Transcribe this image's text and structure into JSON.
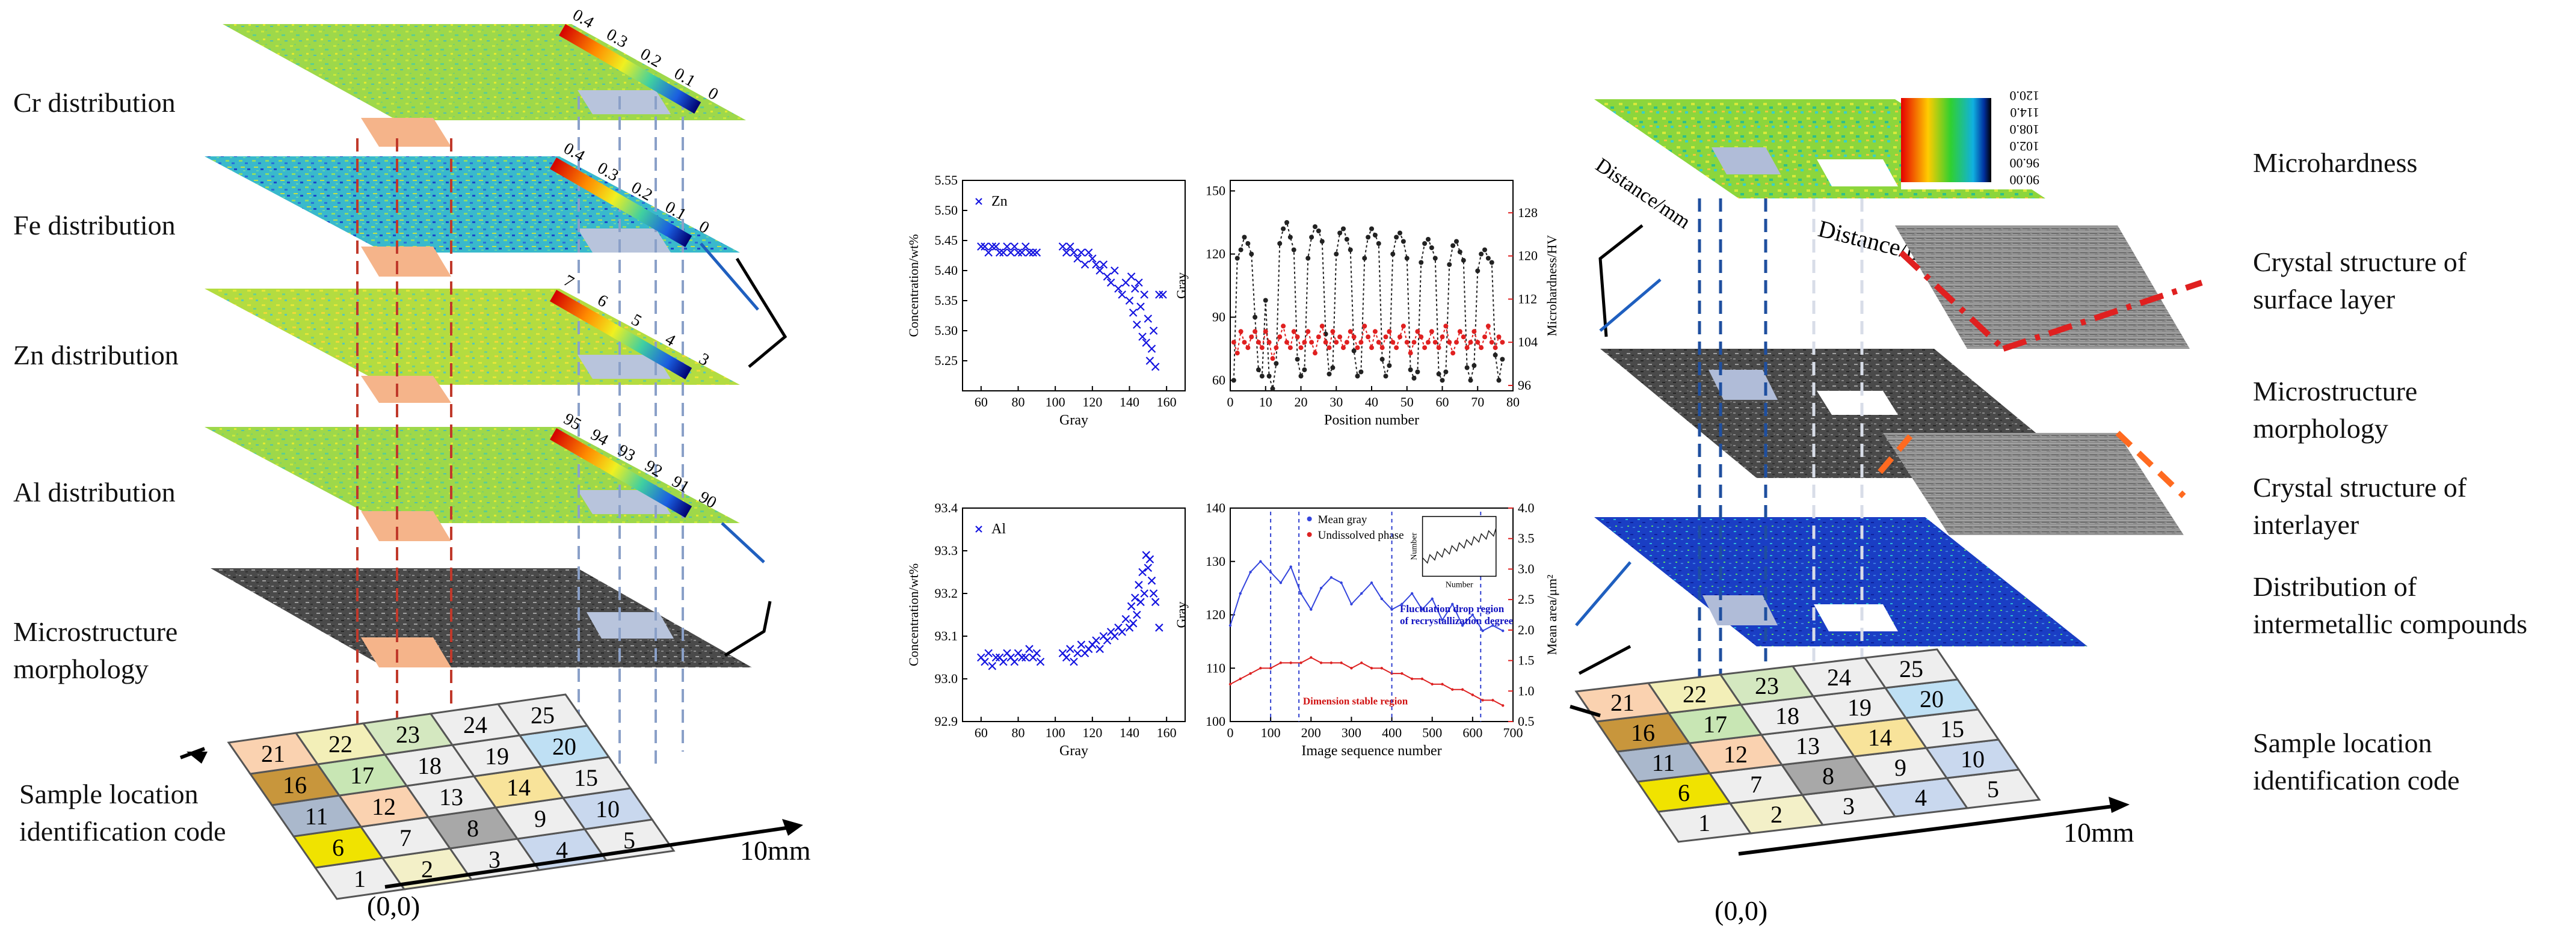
{
  "left_panel": {
    "labels": {
      "cr": "Cr distribution",
      "fe": "Fe distribution",
      "zn": "Zn distribution",
      "al": "Al distribution",
      "micro": "Microstructure\nmorphology",
      "sample": "Sample location\nidentification code"
    },
    "origin": "(0,0)",
    "scale": "10mm",
    "cr_ticks": [
      "0.4",
      "0.3",
      "0.2",
      "0.1",
      "0"
    ],
    "fe_ticks": [
      "0.4",
      "0.3",
      "0.2",
      "0.1",
      "0"
    ],
    "zn_ticks": [
      "7",
      "6",
      "5",
      "4",
      "3"
    ],
    "al_ticks": [
      "95",
      "94",
      "93",
      "92",
      "91",
      "90"
    ]
  },
  "grid": {
    "codes": [
      [
        1,
        2,
        3,
        4,
        5
      ],
      [
        6,
        7,
        8,
        9,
        10
      ],
      [
        11,
        12,
        13,
        14,
        15
      ],
      [
        16,
        17,
        18,
        19,
        20
      ],
      [
        21,
        22,
        23,
        24,
        25
      ]
    ],
    "colors": [
      [
        "#eeeeee",
        "#f3f0c8",
        "#eeeeee",
        "#c9d8ee",
        "#eeeeee"
      ],
      [
        "#f0e300",
        "#eeeeee",
        "#a8a8a8",
        "#eeeeee",
        "#c9d8ee"
      ],
      [
        "#aab8cc",
        "#fad2b0",
        "#eeeeee",
        "#f8e39a",
        "#eeeeee"
      ],
      [
        "#c8963c",
        "#c8e6b4",
        "#eeeeee",
        "#eeeeee",
        "#bfe0f4"
      ],
      [
        "#fad2b0",
        "#f3efb8",
        "#d4e8c0",
        "#eeeeee",
        "#eeeeee"
      ]
    ]
  },
  "right_panel": {
    "labels": {
      "hardness": "Microhardness",
      "crystal_surface": "Crystal structure of\nsurface layer",
      "micro": "Microstructure\nmorphology",
      "crystal_inter": "Crystal structure of\ninterlayer",
      "imc": "Distribution of\nintermetallic compounds",
      "sample": "Sample location\nidentification code"
    },
    "origin": "(0,0)",
    "scale": "10mm",
    "hardness_ticks": [
      "120.0",
      "114.0",
      "108.0",
      "102.0",
      "96.00",
      "90.00"
    ],
    "hardness_axis": "Distance/mm",
    "hardness_axis2": "Distance/mm"
  },
  "chart_data": [
    {
      "type": "scatter",
      "legend": "Zn",
      "xlabel": "Gray",
      "ylabel": "Concentration/wt%",
      "xlim": [
        50,
        170
      ],
      "ylim": [
        5.2,
        5.55
      ],
      "xticks": [
        "60",
        "80",
        "100",
        "120",
        "140",
        "160"
      ],
      "yticks": [
        "5.25",
        "5.30",
        "5.35",
        "5.40",
        "5.45",
        "5.50",
        "5.55"
      ],
      "x": [
        60,
        62,
        64,
        66,
        68,
        70,
        72,
        74,
        76,
        78,
        80,
        82,
        84,
        86,
        88,
        90,
        104,
        106,
        108,
        110,
        112,
        114,
        116,
        118,
        120,
        122,
        124,
        126,
        128,
        130,
        132,
        134,
        136,
        138,
        140,
        141,
        142,
        143,
        144,
        145,
        146,
        147,
        148,
        149,
        150,
        151,
        152,
        153,
        154,
        156,
        158
      ],
      "y": [
        5.44,
        5.44,
        5.43,
        5.44,
        5.44,
        5.43,
        5.43,
        5.44,
        5.43,
        5.44,
        5.43,
        5.43,
        5.44,
        5.43,
        5.43,
        5.43,
        5.44,
        5.43,
        5.44,
        5.43,
        5.42,
        5.43,
        5.41,
        5.43,
        5.42,
        5.41,
        5.4,
        5.41,
        5.39,
        5.38,
        5.4,
        5.37,
        5.36,
        5.38,
        5.35,
        5.39,
        5.33,
        5.37,
        5.31,
        5.38,
        5.34,
        5.29,
        5.36,
        5.28,
        5.32,
        5.25,
        5.27,
        5.3,
        5.24,
        5.36,
        5.36
      ]
    },
    {
      "type": "line",
      "xlabel": "Position number",
      "ylabel": "Gray",
      "ylabel2": "Microhardness/HV",
      "xlim": [
        0,
        80
      ],
      "ylim": [
        55,
        155
      ],
      "ylim2": [
        95,
        134
      ],
      "xticks": [
        "0",
        "10",
        "20",
        "30",
        "40",
        "50",
        "60",
        "70",
        "80"
      ],
      "yticks": [
        "60",
        "90",
        "120",
        "150"
      ],
      "yticks2": [
        "96",
        "104",
        "112",
        "120",
        "128"
      ],
      "series": [
        {
          "name": "Gray",
          "color": "#222222",
          "x": [
            1,
            2,
            3,
            4,
            5,
            6,
            7,
            8,
            9,
            10,
            11,
            12,
            13,
            14,
            15,
            16,
            17,
            18,
            19,
            20,
            21,
            22,
            23,
            24,
            25,
            26,
            27,
            28,
            29,
            30,
            31,
            32,
            33,
            34,
            35,
            36,
            37,
            38,
            39,
            40,
            41,
            42,
            43,
            44,
            45,
            46,
            47,
            48,
            49,
            50,
            51,
            52,
            53,
            54,
            55,
            56,
            57,
            58,
            59,
            60,
            61,
            62,
            63,
            64,
            65,
            66,
            67,
            68,
            69,
            70,
            71,
            72,
            73,
            74,
            75,
            76,
            77
          ],
          "values": [
            60,
            118,
            122,
            128,
            125,
            120,
            90,
            65,
            62,
            98,
            62,
            56,
            68,
            125,
            132,
            135,
            128,
            122,
            70,
            62,
            65,
            118,
            128,
            133,
            131,
            126,
            82,
            63,
            66,
            120,
            130,
            132,
            127,
            122,
            74,
            62,
            64,
            118,
            128,
            132,
            129,
            125,
            70,
            62,
            67,
            120,
            128,
            130,
            126,
            118,
            65,
            61,
            64,
            116,
            125,
            127,
            123,
            118,
            63,
            60,
            64,
            115,
            124,
            126,
            121,
            117,
            66,
            60,
            67,
            112,
            120,
            122,
            118,
            116,
            72,
            60,
            70
          ]
        },
        {
          "name": "Microhardness",
          "color": "#e02020",
          "x": [
            1,
            2,
            3,
            4,
            5,
            6,
            7,
            8,
            9,
            10,
            11,
            12,
            13,
            14,
            15,
            16,
            17,
            18,
            19,
            20,
            21,
            22,
            23,
            24,
            25,
            26,
            27,
            28,
            29,
            30,
            31,
            32,
            33,
            34,
            35,
            36,
            37,
            38,
            39,
            40,
            41,
            42,
            43,
            44,
            45,
            46,
            47,
            48,
            49,
            50,
            51,
            52,
            53,
            54,
            55,
            56,
            57,
            58,
            59,
            60,
            61,
            62,
            63,
            64,
            65,
            66,
            67,
            68,
            69,
            70,
            71,
            72,
            73,
            74,
            75,
            76,
            77
          ],
          "values": [
            104,
            102,
            106,
            104,
            103,
            105,
            106,
            104,
            103,
            106,
            104,
            101,
            103,
            105,
            107,
            104,
            103,
            106,
            105,
            103,
            104,
            106,
            104,
            102,
            105,
            107,
            104,
            103,
            106,
            104,
            105,
            103,
            104,
            106,
            105,
            103,
            104,
            107,
            105,
            103,
            106,
            104,
            103,
            105,
            106,
            104,
            103,
            105,
            107,
            104,
            102,
            104,
            106,
            105,
            103,
            104,
            106,
            104,
            103,
            105,
            107,
            104,
            102,
            104,
            106,
            105,
            103,
            104,
            106,
            104,
            103,
            105,
            107,
            104,
            103,
            105,
            104
          ]
        }
      ]
    },
    {
      "type": "scatter",
      "legend": "Al",
      "xlabel": "Gray",
      "ylabel": "Concentration/wt%",
      "xlim": [
        50,
        170
      ],
      "ylim": [
        92.9,
        93.4
      ],
      "xticks": [
        "60",
        "80",
        "100",
        "120",
        "140",
        "160"
      ],
      "yticks": [
        "92.9",
        "93.0",
        "93.1",
        "93.2",
        "93.3",
        "93.4"
      ],
      "x": [
        60,
        62,
        64,
        66,
        68,
        70,
        72,
        74,
        76,
        78,
        80,
        82,
        84,
        86,
        88,
        90,
        92,
        104,
        106,
        108,
        110,
        112,
        114,
        116,
        118,
        120,
        122,
        124,
        126,
        128,
        130,
        132,
        134,
        136,
        138,
        140,
        141,
        142,
        143,
        144,
        145,
        146,
        147,
        148,
        149,
        150,
        151,
        152,
        153,
        154,
        156
      ],
      "y": [
        93.05,
        93.04,
        93.06,
        93.03,
        93.05,
        93.05,
        93.04,
        93.06,
        93.05,
        93.04,
        93.06,
        93.05,
        93.05,
        93.07,
        93.05,
        93.06,
        93.04,
        93.06,
        93.05,
        93.07,
        93.04,
        93.06,
        93.08,
        93.06,
        93.07,
        93.08,
        93.09,
        93.07,
        93.1,
        93.09,
        93.11,
        93.1,
        93.12,
        93.11,
        93.14,
        93.12,
        93.17,
        93.13,
        93.19,
        93.15,
        93.22,
        93.18,
        93.25,
        93.2,
        93.29,
        93.26,
        93.28,
        93.23,
        93.2,
        93.18,
        93.12
      ]
    },
    {
      "type": "line",
      "xlabel": "Image sequence number",
      "ylabel": "Gray",
      "ylabel2": "Mean area/μm²",
      "xlim": [
        0,
        700
      ],
      "ylim": [
        100,
        140
      ],
      "ylim2": [
        0.5,
        4.0
      ],
      "xticks": [
        "0",
        "100",
        "200",
        "300",
        "400",
        "500",
        "600",
        "700"
      ],
      "yticks": [
        "100",
        "110",
        "120",
        "130",
        "140"
      ],
      "yticks2": [
        "0.5",
        "1.0",
        "1.5",
        "2.0",
        "2.5",
        "3.0",
        "3.5",
        "4.0"
      ],
      "legend": [
        "Mean gray",
        "Undissolved phase"
      ],
      "annotations": [
        "Dimension stable region",
        "Fluctuation drop region\nof recrystallization degree"
      ],
      "inset_ylabel": "Number",
      "inset_xlabel": "Number",
      "series": [
        {
          "name": "Mean gray",
          "color": "#3344dd",
          "x": [
            0,
            25,
            50,
            75,
            100,
            125,
            150,
            175,
            200,
            225,
            250,
            275,
            300,
            325,
            350,
            375,
            400,
            425,
            450,
            475,
            500,
            525,
            550,
            575,
            600,
            625,
            650,
            675
          ],
          "values": [
            118,
            124,
            128,
            130,
            128,
            126,
            129,
            124,
            121,
            125,
            127,
            126,
            122,
            124,
            126,
            123,
            121,
            122,
            124,
            121,
            123,
            119,
            122,
            118,
            120,
            117,
            118,
            117
          ]
        },
        {
          "name": "Undissolved phase",
          "color": "#dd2222",
          "x": [
            0,
            25,
            50,
            75,
            100,
            125,
            150,
            175,
            200,
            225,
            250,
            275,
            300,
            325,
            350,
            375,
            400,
            425,
            450,
            475,
            500,
            525,
            550,
            575,
            600,
            625,
            650,
            675
          ],
          "values": [
            107,
            108,
            109,
            110,
            110,
            111,
            111,
            111,
            112,
            111,
            111,
            111,
            110,
            111,
            110,
            110,
            109,
            109,
            108,
            108,
            107,
            107,
            106,
            106,
            105,
            104,
            104,
            103
          ]
        }
      ]
    }
  ]
}
